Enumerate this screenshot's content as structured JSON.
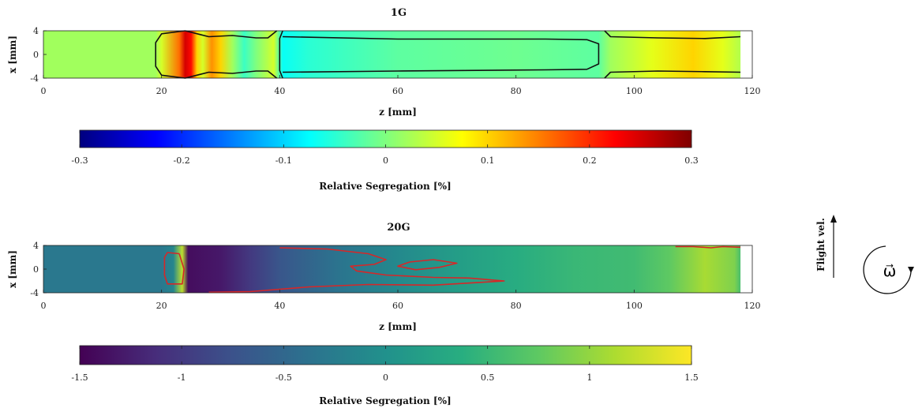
{
  "chart_data": [
    {
      "type": "heatmap",
      "title": "1G",
      "xlabel": "z [mm]",
      "ylabel": "x [mm]",
      "xlim": [
        0,
        120
      ],
      "ylim": [
        -4,
        4
      ],
      "xticks": [
        "0",
        "20",
        "40",
        "60",
        "80",
        "100",
        "120"
      ],
      "yticks": [
        "4",
        "0",
        "-4"
      ],
      "colormap": "jet",
      "colorbar": {
        "label": "Relative Segregation [%]",
        "range": [
          -0.3,
          0.3
        ],
        "ticks": [
          "-0.3",
          "-0.2",
          "-0.1",
          "0",
          "0.1",
          "0.2",
          "0.3"
        ]
      },
      "field_profile": [
        {
          "z": 0,
          "value": 0.02
        },
        {
          "z": 19,
          "value": 0.02
        },
        {
          "z": 20,
          "value": 0.05
        },
        {
          "z": 23,
          "value": 0.16
        },
        {
          "z": 24,
          "value": 0.25
        },
        {
          "z": 25,
          "value": 0.22
        },
        {
          "z": 26,
          "value": 0.1
        },
        {
          "z": 27,
          "value": 0.05
        },
        {
          "z": 28.5,
          "value": 0.14
        },
        {
          "z": 30,
          "value": 0.1
        },
        {
          "z": 32,
          "value": 0.02
        },
        {
          "z": 34,
          "value": -0.04
        },
        {
          "z": 36,
          "value": 0.0
        },
        {
          "z": 39,
          "value": 0.05
        },
        {
          "z": 40.5,
          "value": -0.07
        },
        {
          "z": 45,
          "value": -0.05
        },
        {
          "z": 60,
          "value": -0.02
        },
        {
          "z": 80,
          "value": -0.01
        },
        {
          "z": 94,
          "value": -0.02
        },
        {
          "z": 96,
          "value": 0.02
        },
        {
          "z": 103,
          "value": 0.06
        },
        {
          "z": 110,
          "value": 0.1
        },
        {
          "z": 115,
          "value": 0.06
        },
        {
          "z": 118,
          "value": 0.03
        }
      ],
      "contour_color": "#111111",
      "contours": [
        [
          [
            24,
            4
          ],
          [
            20,
            3.5
          ],
          [
            19,
            2
          ],
          [
            19,
            -2
          ],
          [
            20,
            -3.5
          ],
          [
            24,
            -4
          ],
          [
            28,
            -3
          ],
          [
            32,
            -3.2
          ],
          [
            36,
            -2.8
          ],
          [
            38,
            -2.8
          ],
          [
            39.5,
            -4
          ]
        ],
        [
          [
            24,
            4
          ],
          [
            28,
            3
          ],
          [
            32,
            3.2
          ],
          [
            36,
            2.8
          ],
          [
            38,
            2.8
          ],
          [
            39.5,
            4
          ]
        ],
        [
          [
            40.5,
            4
          ],
          [
            40,
            2.7
          ],
          [
            40,
            -2.7
          ],
          [
            40.5,
            -4
          ]
        ],
        [
          [
            40.5,
            3
          ],
          [
            60,
            2.6
          ],
          [
            85,
            2.6
          ],
          [
            92,
            2.5
          ],
          [
            94,
            1.8
          ],
          [
            94,
            -1.6
          ],
          [
            92,
            -2.5
          ],
          [
            85,
            -2.6
          ],
          [
            60,
            -2.8
          ],
          [
            40.5,
            -3
          ]
        ],
        [
          [
            95,
            4
          ],
          [
            96,
            3
          ],
          [
            104,
            2.8
          ],
          [
            112,
            2.7
          ],
          [
            118,
            3
          ]
        ],
        [
          [
            95,
            -4
          ],
          [
            96,
            -3
          ],
          [
            104,
            -2.8
          ],
          [
            112,
            -2.9
          ],
          [
            118,
            -3
          ]
        ]
      ]
    },
    {
      "type": "heatmap",
      "title": "20G",
      "xlabel": "z [mm]",
      "ylabel": "x [mm]",
      "xlim": [
        0,
        120
      ],
      "ylim": [
        -4,
        4
      ],
      "xticks": [
        "0",
        "20",
        "40",
        "60",
        "80",
        "100",
        "120"
      ],
      "yticks": [
        "4",
        "0",
        "-4"
      ],
      "colormap": "viridis",
      "colorbar": {
        "label": "Relative Segregation [%]",
        "range": [
          -1.5,
          1.5
        ],
        "ticks": [
          "-1.5",
          "-1",
          "-0.5",
          "0",
          "0.5",
          "1",
          "1.5"
        ]
      },
      "field_profile": [
        {
          "z": 0,
          "value": -0.3
        },
        {
          "z": 20,
          "value": -0.3
        },
        {
          "z": 22,
          "value": -0.15
        },
        {
          "z": 23.5,
          "value": 1.2
        },
        {
          "z": 24.5,
          "value": -1.4
        },
        {
          "z": 30,
          "value": -1.3
        },
        {
          "z": 35,
          "value": -1.0
        },
        {
          "z": 40,
          "value": -0.7
        },
        {
          "z": 50,
          "value": -0.35
        },
        {
          "z": 60,
          "value": -0.1
        },
        {
          "z": 70,
          "value": 0.15
        },
        {
          "z": 80,
          "value": 0.35
        },
        {
          "z": 90,
          "value": 0.5
        },
        {
          "z": 100,
          "value": 0.55
        },
        {
          "z": 106,
          "value": 0.75
        },
        {
          "z": 112,
          "value": 1.1
        },
        {
          "z": 117,
          "value": 0.9
        },
        {
          "z": 118,
          "value": 0.6
        }
      ],
      "contour_color": "#d62728",
      "contours": [
        [
          [
            23,
            2.6
          ],
          [
            21,
            2.8
          ],
          [
            20.5,
            2
          ],
          [
            20.5,
            -1
          ],
          [
            21,
            -2.5
          ],
          [
            23.5,
            -2.5
          ],
          [
            23.8,
            0
          ],
          [
            23,
            2.6
          ]
        ],
        [
          [
            40,
            3.6
          ],
          [
            48,
            3.4
          ],
          [
            55,
            2.6
          ],
          [
            58,
            1.6
          ],
          [
            56,
            0.8
          ],
          [
            52,
            0.5
          ],
          [
            53,
            -0.3
          ],
          [
            58,
            -1.0
          ],
          [
            66,
            -1.4
          ],
          [
            72,
            -1.5
          ],
          [
            78,
            -2.0
          ],
          [
            66,
            -2.7
          ],
          [
            55,
            -2.6
          ],
          [
            45,
            -3.0
          ],
          [
            35,
            -3.8
          ],
          [
            28,
            -3.9
          ]
        ],
        [
          [
            62,
            1.2
          ],
          [
            60,
            0.5
          ],
          [
            63,
            -0.1
          ],
          [
            67,
            0.3
          ],
          [
            70,
            1.0
          ],
          [
            66,
            1.6
          ],
          [
            62,
            1.2
          ]
        ],
        [
          [
            107,
            3.8
          ],
          [
            110,
            3.8
          ],
          [
            113,
            3.6
          ],
          [
            115,
            3.8
          ],
          [
            118,
            3.7
          ]
        ]
      ]
    }
  ],
  "annotations": {
    "flight_label": "Flight vel.",
    "omega_symbol": "ω⃗"
  }
}
